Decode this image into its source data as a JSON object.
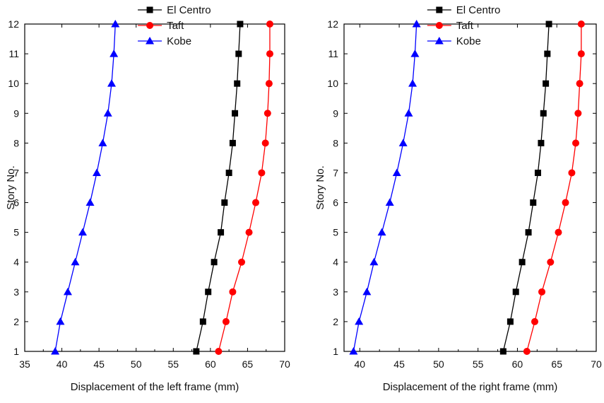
{
  "chart_data": [
    {
      "type": "line",
      "xlabel": "Displacement of the left frame (mm)",
      "ylabel": "Story No.",
      "xlim": [
        35,
        70
      ],
      "ylim": [
        1,
        12
      ],
      "x_ticks": [
        "35",
        "40",
        "45",
        "50",
        "55",
        "60",
        "65",
        "70"
      ],
      "y_ticks": [
        "1",
        "2",
        "3",
        "4",
        "5",
        "6",
        "7",
        "8",
        "9",
        "10",
        "11",
        "12"
      ],
      "legend_position": "top-center",
      "grid": false,
      "series": [
        {
          "name": "El Centro",
          "color": "#000000",
          "marker": "square",
          "x": [
            58.1,
            59.0,
            59.7,
            60.5,
            61.4,
            61.9,
            62.5,
            63.0,
            63.3,
            63.6,
            63.8,
            64.0
          ],
          "y": [
            1,
            2,
            3,
            4,
            5,
            6,
            7,
            8,
            9,
            10,
            11,
            12
          ]
        },
        {
          "name": "Taft",
          "color": "#ff0000",
          "marker": "circle",
          "x": [
            61.1,
            62.1,
            63.0,
            64.2,
            65.2,
            66.1,
            66.9,
            67.4,
            67.7,
            67.9,
            68.0,
            68.0
          ],
          "y": [
            1,
            2,
            3,
            4,
            5,
            6,
            7,
            8,
            9,
            10,
            11,
            12
          ]
        },
        {
          "name": "Kobe",
          "color": "#0000ff",
          "marker": "triangle",
          "x": [
            39.1,
            39.8,
            40.8,
            41.8,
            42.8,
            43.8,
            44.7,
            45.5,
            46.2,
            46.7,
            47.0,
            47.2
          ],
          "y": [
            1,
            2,
            3,
            4,
            5,
            6,
            7,
            8,
            9,
            10,
            11,
            12
          ]
        }
      ]
    },
    {
      "type": "line",
      "xlabel": "Displacement  of the right frame (mm)",
      "ylabel": "Story No.",
      "xlim": [
        38,
        70
      ],
      "ylim": [
        1,
        12
      ],
      "x_ticks": [
        "40",
        "45",
        "50",
        "55",
        "60",
        "65",
        "70"
      ],
      "y_ticks": [
        "1",
        "2",
        "3",
        "4",
        "5",
        "6",
        "7",
        "8",
        "9",
        "10",
        "11",
        "12"
      ],
      "legend_position": "top-center",
      "grid": false,
      "series": [
        {
          "name": "El Centro",
          "color": "#000000",
          "marker": "square",
          "x": [
            58.2,
            59.1,
            59.8,
            60.6,
            61.4,
            62.0,
            62.6,
            63.0,
            63.3,
            63.6,
            63.8,
            64.0
          ],
          "y": [
            1,
            2,
            3,
            4,
            5,
            6,
            7,
            8,
            9,
            10,
            11,
            12
          ]
        },
        {
          "name": "Taft",
          "color": "#ff0000",
          "marker": "circle",
          "x": [
            61.2,
            62.2,
            63.1,
            64.2,
            65.2,
            66.1,
            66.9,
            67.4,
            67.7,
            67.9,
            68.1,
            68.1
          ],
          "y": [
            1,
            2,
            3,
            4,
            5,
            6,
            7,
            8,
            9,
            10,
            11,
            12
          ]
        },
        {
          "name": "Kobe",
          "color": "#0000ff",
          "marker": "triangle",
          "x": [
            39.2,
            39.9,
            40.9,
            41.8,
            42.8,
            43.8,
            44.7,
            45.5,
            46.2,
            46.7,
            47.0,
            47.2
          ],
          "y": [
            1,
            2,
            3,
            4,
            5,
            6,
            7,
            8,
            9,
            10,
            11,
            12
          ]
        }
      ]
    }
  ]
}
